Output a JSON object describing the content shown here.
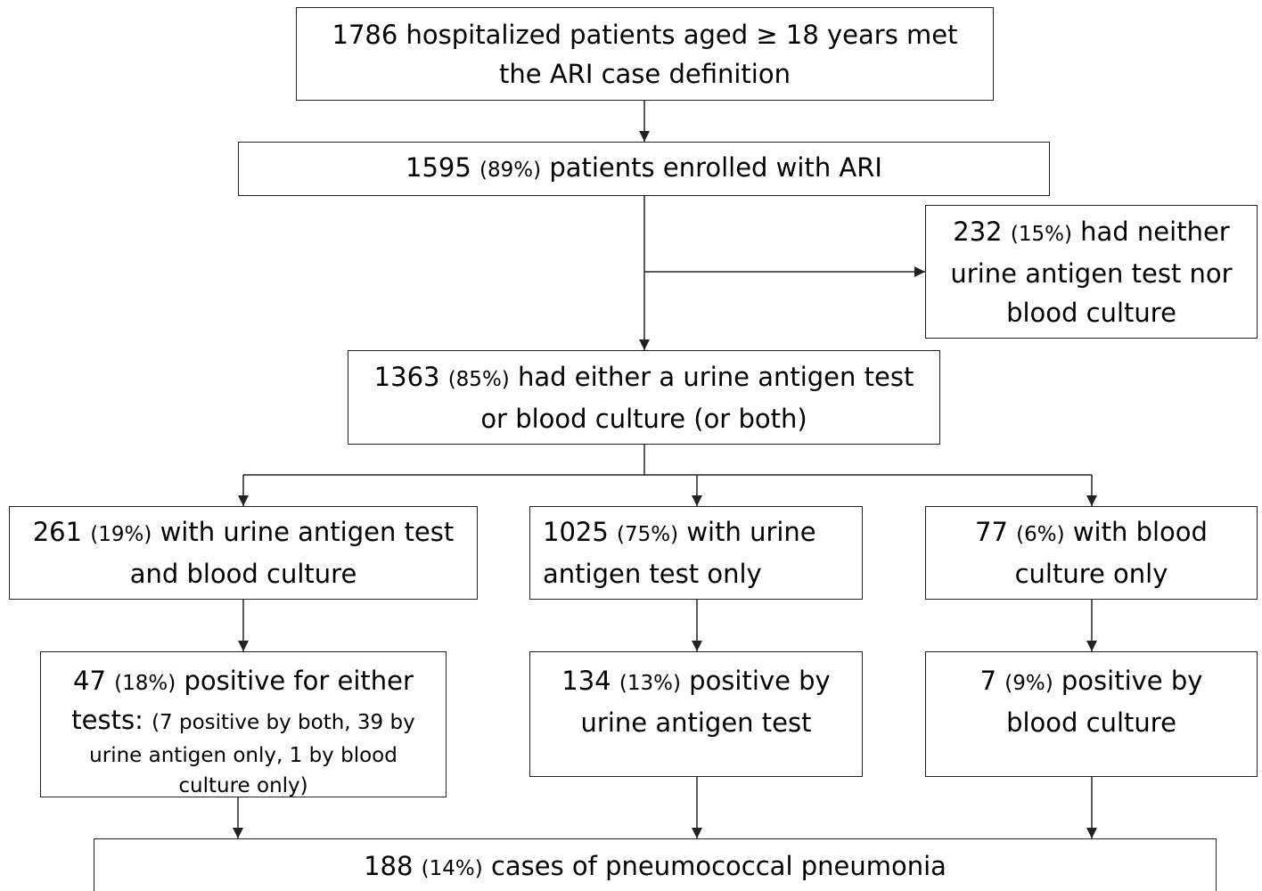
{
  "nodes": [
    {
      "lines": [
        [
          "1786 hospitalized patients aged ≥ 18 years met"
        ],
        [
          "the ARI case definition"
        ]
      ]
    },
    {
      "lines": [
        [
          "1595",
          "(89%)",
          "patients enrolled with ARI"
        ]
      ]
    },
    {
      "lines": [
        [
          "232",
          "(15%)",
          "had neither"
        ],
        [
          "urine antigen test nor"
        ],
        [
          "blood culture"
        ]
      ]
    },
    {
      "lines": [
        [
          "1363",
          "(85%)",
          "had either a urine antigen test"
        ],
        [
          "or blood culture (or both)"
        ]
      ]
    },
    {
      "lines": [
        [
          "261",
          "(19%)",
          "with urine antigen test"
        ],
        [
          "and blood culture"
        ]
      ]
    },
    {
      "lines": [
        [
          "1025",
          "(75%)",
          "with urine"
        ],
        [
          "antigen test only"
        ]
      ]
    },
    {
      "lines": [
        [
          "77",
          "(6%)",
          "with blood"
        ],
        [
          "culture only"
        ]
      ]
    },
    {
      "lines": [
        [
          "47",
          "(18%)",
          "positive for either"
        ],
        [
          "tests:",
          "(7 positive by both, 39 by"
        ],
        [
          "urine antigen only, 1 by blood"
        ],
        [
          "culture only)"
        ]
      ]
    },
    {
      "lines": [
        [
          "134",
          "(13%)",
          "positive by"
        ],
        [
          "urine antigen test"
        ]
      ]
    },
    {
      "lines": [
        [
          "7",
          "(9%)",
          "positive by"
        ],
        [
          "blood culture"
        ]
      ]
    },
    {
      "lines": [
        [
          "188",
          "(14%)",
          "cases of pneumococcal pneumonia"
        ]
      ]
    }
  ]
}
